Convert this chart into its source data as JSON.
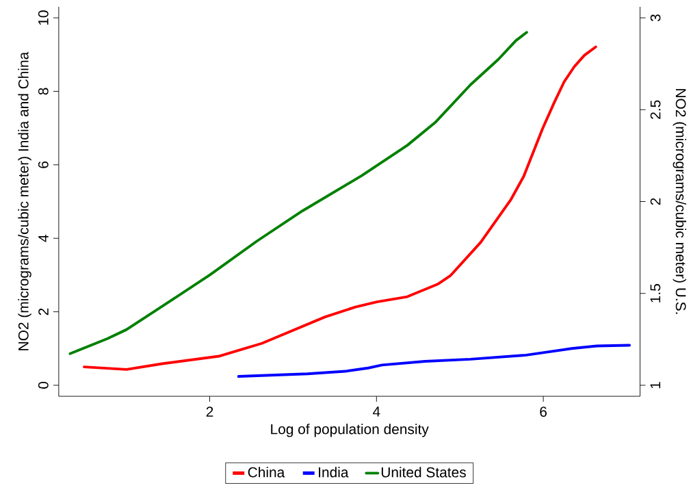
{
  "chart_data": {
    "type": "line",
    "xlabel": "Log of population density",
    "ylabel": "NO2 (micrograms/cubic meter) India and China",
    "y2label": "NO2 (micrograms/cubic meter) U.S.",
    "xlim": [
      0.19,
      7.16
    ],
    "xticks": [
      2,
      4,
      6
    ],
    "ylim": [
      -0.3,
      10.3
    ],
    "yticks": [
      0,
      2,
      4,
      6,
      8,
      10
    ],
    "y2lim": [
      0.94,
      3.06
    ],
    "y2ticks": [
      1,
      1.5,
      2,
      2.5,
      3
    ],
    "grid": false,
    "legend": "bottom",
    "marker": "none",
    "line_style": "solid",
    "series": [
      {
        "name": "China",
        "color": "#ff0000",
        "axis": "y",
        "x": [
          0.495,
          1.002,
          1.442,
          2.109,
          2.625,
          3.383,
          3.747,
          4.005,
          4.369,
          4.733,
          4.885,
          5.249,
          5.613,
          5.764,
          5.992,
          6.128,
          6.25,
          6.371,
          6.492,
          6.629
        ],
        "values": [
          0.5,
          0.43,
          0.59,
          0.79,
          1.14,
          1.86,
          2.13,
          2.27,
          2.41,
          2.75,
          2.98,
          3.89,
          5.06,
          5.68,
          6.99,
          7.68,
          8.26,
          8.67,
          8.98,
          9.21
        ]
      },
      {
        "name": "India",
        "color": "#0000ff",
        "axis": "y",
        "x": [
          2.346,
          3.171,
          3.626,
          3.9,
          4.066,
          4.581,
          5.128,
          5.794,
          6.34,
          6.644,
          7.033
        ],
        "values": [
          0.24,
          0.31,
          0.38,
          0.47,
          0.55,
          0.65,
          0.71,
          0.82,
          1.0,
          1.07,
          1.09
        ]
      },
      {
        "name": "United States",
        "color": "#008000",
        "axis": "y2",
        "x": [
          0.326,
          0.775,
          1.002,
          1.442,
          2.003,
          2.564,
          3.111,
          3.823,
          4.005,
          4.369,
          4.703,
          5.128,
          5.461,
          5.673,
          5.801
        ],
        "values": [
          1.172,
          1.254,
          1.303,
          1.433,
          1.601,
          1.784,
          1.949,
          2.141,
          2.196,
          2.306,
          2.43,
          2.636,
          2.774,
          2.877,
          2.921
        ]
      }
    ]
  }
}
